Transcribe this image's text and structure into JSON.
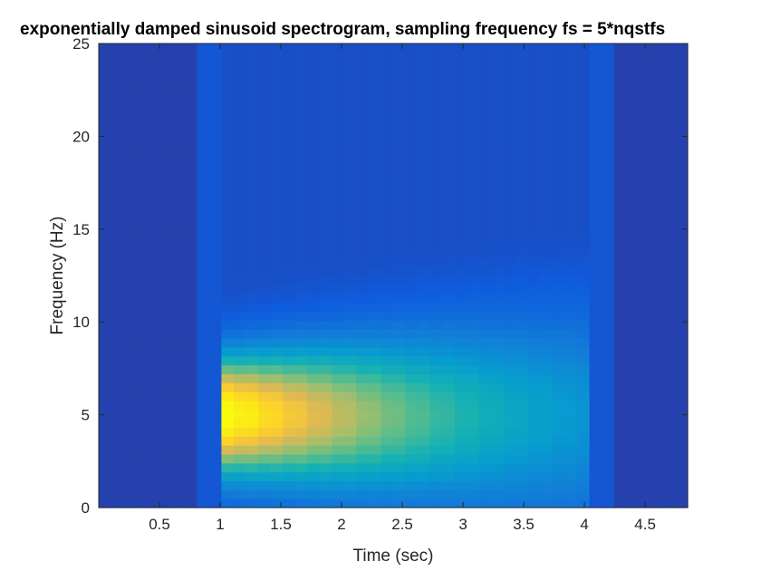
{
  "chart_data": {
    "type": "heatmap",
    "title": "exponentially damped sinusoid spectrogram, sampling frequency fs = 5*nqstfs",
    "xlabel": "Time (sec)",
    "ylabel": "Frequency (Hz)",
    "xlim": [
      0,
      4.85
    ],
    "ylim": [
      0,
      25
    ],
    "x_ticks": [
      0.5,
      1,
      1.5,
      2,
      2.5,
      3,
      3.5,
      4,
      4.5
    ],
    "x_tick_labels": [
      "0.5",
      "1",
      "1.5",
      "2",
      "2.5",
      "3",
      "3.5",
      "4",
      "4.5"
    ],
    "y_ticks": [
      0,
      5,
      10,
      15,
      20,
      25
    ],
    "y_tick_labels": [
      "0",
      "5",
      "10",
      "15",
      "20",
      "25"
    ],
    "colormap": "parula",
    "grid": false,
    "signal": {
      "onset_time": 1.05,
      "offset_time": 4.05,
      "center_frequency": 5,
      "bright_band_start": 0.85,
      "bright_band_end": 4.25
    },
    "colors": {
      "background_value": "#3b2aa0",
      "peak": "#f9fb0e"
    }
  }
}
